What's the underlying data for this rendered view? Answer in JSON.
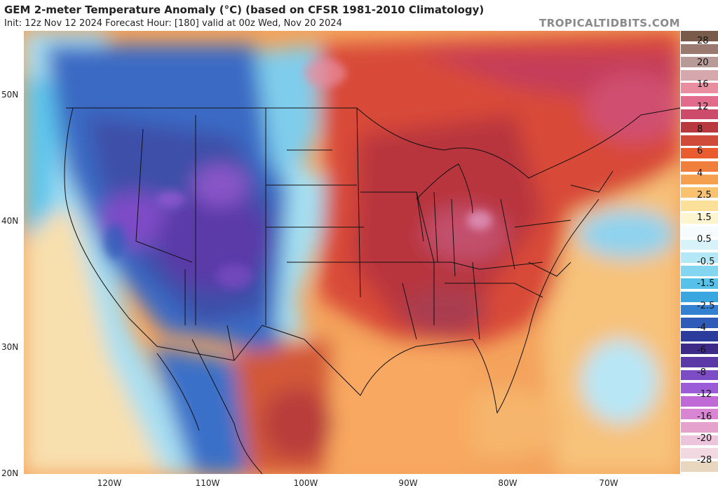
{
  "header": {
    "title": "GEM 2-meter Temperature Anomaly (°C) (based on CFSR 1981-2010 Climatology)",
    "subtitle": "Init: 12z Nov 12 2024   Forecast Hour: [180]   valid at 00z Wed, Nov 20 2024",
    "brand": "TROPICALTIDBITS.COM"
  },
  "axes": {
    "lat_labels": [
      "50N",
      "40N",
      "30N",
      "20N"
    ],
    "lon_labels": [
      "120W",
      "110W",
      "100W",
      "90W",
      "80W",
      "70W"
    ]
  },
  "colorbar": {
    "labels": [
      "28",
      "20",
      "16",
      "12",
      "8",
      "6",
      "4",
      "2.5",
      "1.5",
      "0.5",
      "-0.5",
      "-1.5",
      "-2.5",
      "-4",
      "-6",
      "-8",
      "-12",
      "-16",
      "-20",
      "-28"
    ],
    "colors": [
      "#7a5a4a",
      "#9a7a70",
      "#b89a98",
      "#d4a8ac",
      "#e88ea0",
      "#e26a8a",
      "#cc4a6a",
      "#b8383f",
      "#d04a3a",
      "#e85c30",
      "#f07e3c",
      "#f5a050",
      "#f8c270",
      "#fbe09a",
      "#fdf4d0",
      "#f6fbfe",
      "#d8f2fa",
      "#b4e8f6",
      "#84d6f0",
      "#56c2ea",
      "#3aa6e0",
      "#3480d0",
      "#2f5cb8",
      "#2c3c9a",
      "#3c2c88",
      "#5a38a6",
      "#7c4cc4",
      "#9c5cd8",
      "#c06ad8",
      "#d886d4",
      "#e4a2cc",
      "#ecc4dc",
      "#f2d8e0",
      "#e9d6be"
    ]
  }
}
